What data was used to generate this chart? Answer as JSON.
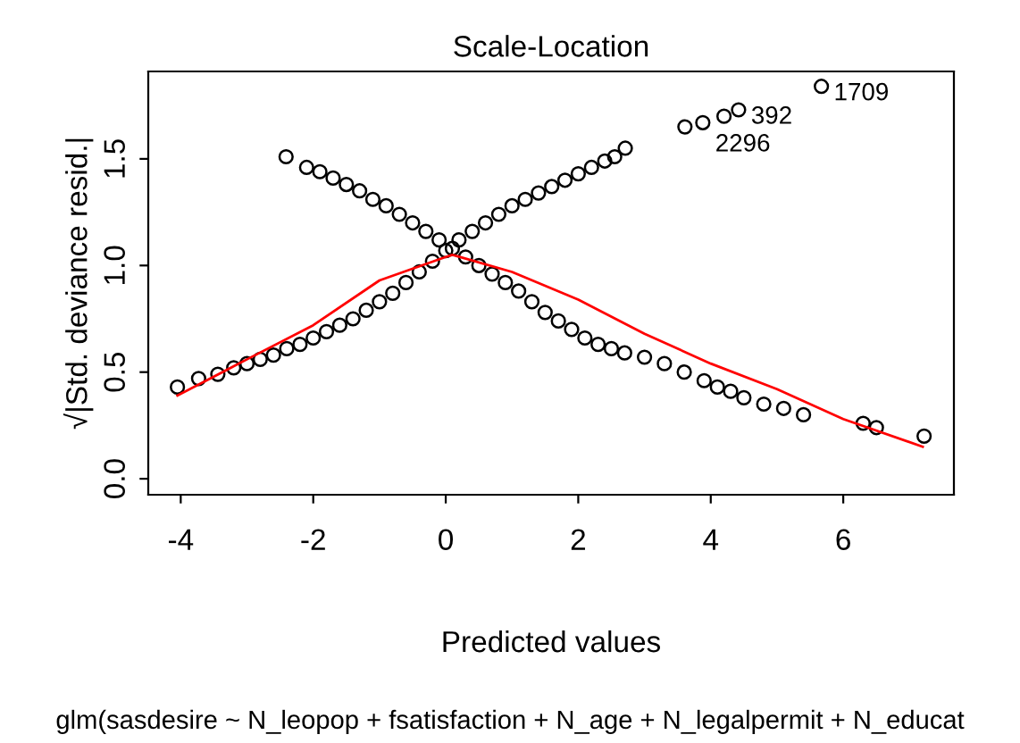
{
  "chart_data": {
    "type": "scatter",
    "title": "Scale-Location",
    "xlabel": "Predicted values",
    "ylabel": "√|Std. deviance resid.|",
    "xlim": [
      -4.49,
      7.67
    ],
    "ylim": [
      -0.075,
      1.91
    ],
    "xticks": [
      -4,
      -2,
      0,
      2,
      4,
      6
    ],
    "yticks": [
      {
        "value": 0,
        "label": "0.0"
      },
      {
        "value": 0.5,
        "label": "0.5"
      },
      {
        "value": 1,
        "label": "1.0"
      },
      {
        "value": 1.5,
        "label": "1.5"
      }
    ],
    "grid": false,
    "legend": false,
    "series": [
      {
        "marker": "circle",
        "color": "#000000",
        "x": [
          -4.05,
          -3.73,
          -3.44,
          -3.2,
          -3.0,
          -2.8,
          -2.6,
          -2.4,
          -2.2,
          -2.0,
          -1.8,
          -1.6,
          -1.4,
          -1.2,
          -1.0,
          -0.8,
          -0.6,
          -0.4,
          -0.2,
          0.0,
          0.2,
          0.4,
          0.6,
          0.8,
          1.0,
          1.2,
          1.4,
          1.6,
          1.8,
          2.0,
          2.2,
          2.4,
          2.55,
          2.71,
          3.61,
          3.88,
          4.2,
          4.42,
          5.67,
          -2.41,
          -2.1,
          -1.9,
          -1.7,
          -1.5,
          -1.3,
          -1.1,
          -0.9,
          -0.7,
          -0.5,
          -0.3,
          -0.1,
          0.1,
          0.3,
          0.5,
          0.7,
          0.9,
          1.1,
          1.3,
          1.5,
          1.7,
          1.9,
          2.1,
          2.3,
          2.5,
          2.7,
          3.0,
          3.3,
          3.6,
          3.9,
          4.1,
          4.3,
          4.5,
          4.8,
          5.1,
          5.4,
          6.3,
          6.5,
          7.22
        ],
        "values": [
          0.43,
          0.47,
          0.49,
          0.52,
          0.54,
          0.56,
          0.58,
          0.61,
          0.63,
          0.66,
          0.69,
          0.72,
          0.75,
          0.79,
          0.83,
          0.87,
          0.92,
          0.97,
          1.02,
          1.07,
          1.12,
          1.16,
          1.2,
          1.24,
          1.28,
          1.31,
          1.34,
          1.37,
          1.4,
          1.43,
          1.46,
          1.49,
          1.51,
          1.55,
          1.65,
          1.67,
          1.7,
          1.73,
          1.84,
          1.51,
          1.46,
          1.44,
          1.41,
          1.38,
          1.35,
          1.31,
          1.28,
          1.24,
          1.2,
          1.16,
          1.12,
          1.08,
          1.04,
          1.0,
          0.96,
          0.92,
          0.88,
          0.83,
          0.78,
          0.74,
          0.7,
          0.66,
          0.63,
          0.61,
          0.59,
          0.57,
          0.54,
          0.5,
          0.46,
          0.43,
          0.41,
          0.38,
          0.35,
          0.33,
          0.3,
          0.26,
          0.24,
          0.2
        ]
      },
      {
        "type": "line",
        "marker": "none",
        "color": "#ff0000",
        "x": [
          -4.05,
          -3.0,
          -2.0,
          -1.0,
          0.0,
          0.1,
          1.0,
          2.0,
          3.0,
          4.0,
          5.0,
          6.0,
          7.2
        ],
        "values": [
          0.39,
          0.56,
          0.72,
          0.93,
          1.04,
          1.05,
          0.97,
          0.84,
          0.68,
          0.54,
          0.42,
          0.28,
          0.15
        ]
      }
    ],
    "annotations": [
      {
        "text": "1709",
        "x": 5.67,
        "y": 1.84
      },
      {
        "text": "392",
        "x": 4.42,
        "y": 1.73
      },
      {
        "text": "2296",
        "x": 3.88,
        "y": 1.67
      },
      "glm(sasdesire ~ N_leopop + fsatisfaction + N_age + N_legalpermit + N_educat"
    ]
  }
}
